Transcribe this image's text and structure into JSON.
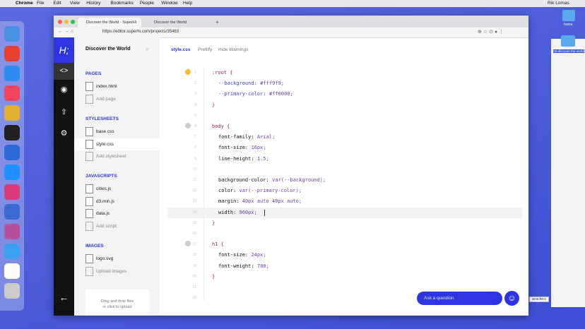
{
  "menubar": {
    "app": "Chrome",
    "items": [
      "File",
      "Edit",
      "View",
      "History",
      "Bookmarks",
      "People",
      "Window",
      "Help"
    ],
    "user": "Rik Lomas"
  },
  "desktop": {
    "icons": [
      "home",
      "03-discover-the-world"
    ],
    "window_text": "aracters"
  },
  "browser": {
    "tabs": [
      "Discover the World - SuperHi",
      "Discover the World"
    ],
    "url": "https://editor.superhi.com/projects/35463"
  },
  "editor": {
    "project": "Discover the World",
    "toolbar": [
      "style.css",
      "Prettify",
      "Hide Warnings"
    ],
    "sections": [
      {
        "title": "PAGES",
        "files": [
          "index.html"
        ],
        "add": "Add page"
      },
      {
        "title": "STYLESHEETS",
        "files": [
          "base.css",
          "style.css"
        ],
        "add": "Add stylesheet"
      },
      {
        "title": "JAVASCRIPTS",
        "files": [
          "cities.js",
          "d3.min.js",
          "data.js"
        ],
        "add": "Add script"
      },
      {
        "title": "IMAGES",
        "files": [
          "logo.svg"
        ],
        "add": "Upload images"
      }
    ],
    "dropzone": [
      "Drag and drop files",
      "or click to upload"
    ],
    "ask": "Ask a question",
    "code": [
      {
        "n": 1,
        "sel": ":root {"
      },
      {
        "n": 2,
        "prop": "--background:",
        "value": "#fff9f9;"
      },
      {
        "n": 3,
        "prop": "--primary-color:",
        "value": "#ff0000;"
      },
      {
        "n": 4,
        "sel": "}"
      },
      {
        "n": 5
      },
      {
        "n": 6,
        "sel": "body {"
      },
      {
        "n": 7,
        "prop": "font-family:",
        "value": "Arial;"
      },
      {
        "n": 8,
        "prop": "font-size:",
        "value": "16px;"
      },
      {
        "n": 9,
        "prop": "line-height:",
        "value": "1.5;"
      },
      {
        "n": 10
      },
      {
        "n": 11,
        "prop": "background-color:",
        "value": "var(--background);"
      },
      {
        "n": 12,
        "prop": "color:",
        "value": "var(--primary-color);"
      },
      {
        "n": 13,
        "prop": "margin:",
        "value": "40px auto 40px auto;"
      },
      {
        "n": 14,
        "prop": "width:",
        "value": "960px;"
      },
      {
        "n": 15,
        "sel": "}"
      },
      {
        "n": 16
      },
      {
        "n": 17,
        "sel": "h1 {"
      },
      {
        "n": 18,
        "prop": "font-size:",
        "value": "24px;"
      },
      {
        "n": 19,
        "prop": "font-weight:",
        "value": "700;"
      },
      {
        "n": 20,
        "sel": "}"
      },
      {
        "n": 21
      },
      {
        "n": 22
      }
    ]
  }
}
